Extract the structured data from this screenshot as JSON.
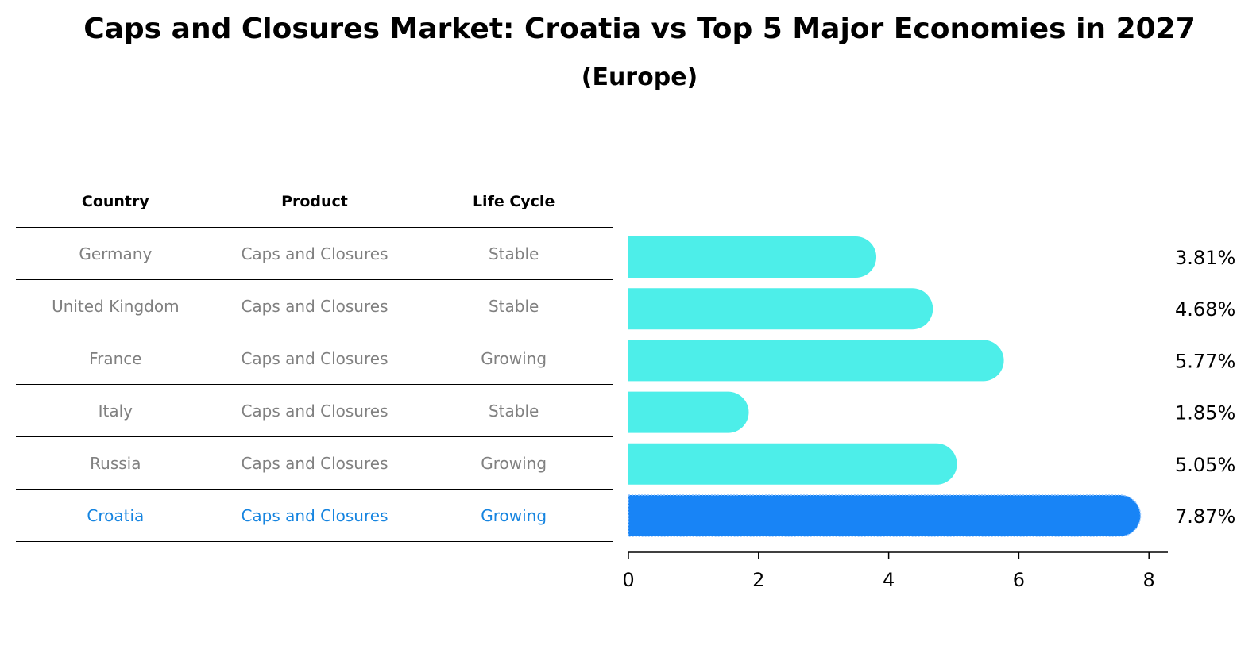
{
  "chart_data": {
    "type": "bar",
    "orientation": "horizontal",
    "title": "Caps and Closures Market: Croatia vs Top 5 Major Economies in 2027",
    "subtitle": "(Europe)",
    "categories": [
      "Germany",
      "United Kingdom",
      "France",
      "Italy",
      "Russia",
      "Croatia"
    ],
    "values": [
      3.81,
      4.68,
      5.77,
      1.85,
      5.05,
      7.87
    ],
    "value_labels": [
      "3.81%",
      "4.68%",
      "5.77%",
      "1.85%",
      "5.05%",
      "7.87%"
    ],
    "xlim": [
      0,
      8.25
    ],
    "xticks": [
      "0",
      "2",
      "4",
      "6",
      "8"
    ],
    "xtick_values": [
      0,
      2,
      4,
      6,
      8
    ],
    "highlight_index": 5,
    "colors": {
      "default": "#4deee9",
      "highlight": "#1884f6"
    },
    "grid": false
  },
  "table": {
    "headers": [
      "Country",
      "Product",
      "Life Cycle"
    ],
    "rows": [
      [
        "Germany",
        "Caps and Closures",
        "Stable"
      ],
      [
        "United Kingdom",
        "Caps and Closures",
        "Stable"
      ],
      [
        "France",
        "Caps and Closures",
        "Growing"
      ],
      [
        "Italy",
        "Caps and Closures",
        "Stable"
      ],
      [
        "Russia",
        "Caps and Closures",
        "Growing"
      ],
      [
        "Croatia",
        "Caps and Closures",
        "Growing"
      ]
    ]
  }
}
